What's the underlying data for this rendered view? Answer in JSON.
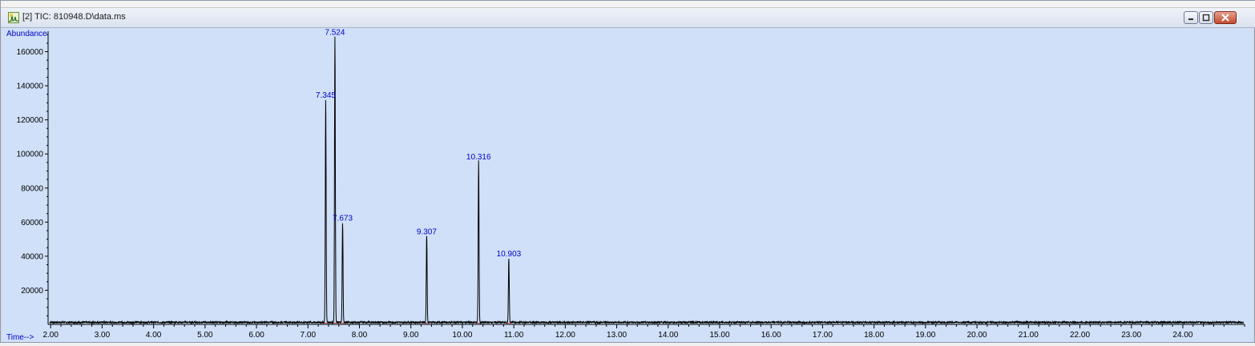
{
  "window": {
    "title": "[2] TIC: 810948.D\\data.ms",
    "icon": "chromatogram-icon",
    "controls": {
      "minimize": "minimize-icon",
      "maximize": "maximize-icon",
      "close": "close-icon"
    }
  },
  "chart_data": {
    "type": "line",
    "ylabel": "Abundance",
    "xlabel": "Time-->",
    "xlim": [
      1.95,
      25.2
    ],
    "ylim": [
      0,
      172000
    ],
    "x_ticks": [
      "2.00",
      "3.00",
      "4.00",
      "5.00",
      "6.00",
      "7.00",
      "8.00",
      "9.00",
      "10.00",
      "11.00",
      "12.00",
      "13.00",
      "14.00",
      "15.00",
      "16.00",
      "17.00",
      "18.00",
      "19.00",
      "20.00",
      "21.00",
      "22.00",
      "23.00",
      "24.00"
    ],
    "y_ticks": [
      "20000",
      "40000",
      "60000",
      "80000",
      "100000",
      "120000",
      "140000",
      "160000"
    ],
    "baseline": 1200,
    "peaks": [
      {
        "rt": 7.345,
        "label": "7.345",
        "height": 131000
      },
      {
        "rt": 7.524,
        "label": "7.524",
        "height": 168000
      },
      {
        "rt": 7.673,
        "label": "7.673",
        "height": 59000
      },
      {
        "rt": 9.307,
        "label": "9.307",
        "height": 51000
      },
      {
        "rt": 10.316,
        "label": "10.316",
        "height": 95000
      },
      {
        "rt": 10.903,
        "label": "10.903",
        "height": 38000
      }
    ],
    "colors": {
      "trace": "#000000",
      "peak_label": "#0000cc",
      "axis_label": "#0000cc",
      "integration": "#d23c3c",
      "background": "#cfe0f8"
    },
    "grid": false
  }
}
